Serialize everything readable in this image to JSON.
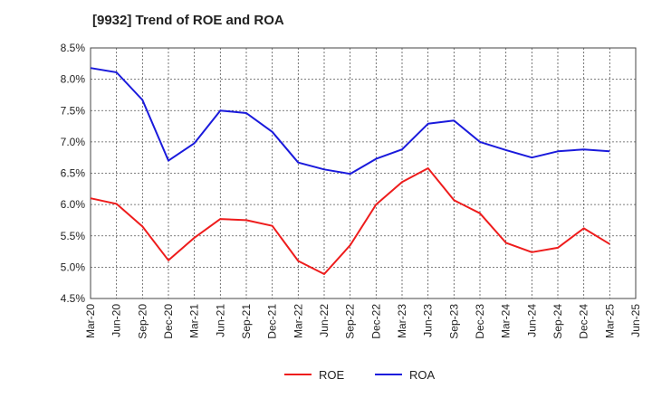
{
  "chart_data": {
    "type": "line",
    "title": "[9932]  Trend of ROE and ROA",
    "xlabel": "",
    "ylabel": "",
    "ylim": [
      4.5,
      8.5
    ],
    "y_ticks": [
      "4.5%",
      "5.0%",
      "5.5%",
      "6.0%",
      "6.5%",
      "7.0%",
      "7.5%",
      "8.0%",
      "8.5%"
    ],
    "y_tick_values": [
      4.5,
      5.0,
      5.5,
      6.0,
      6.5,
      7.0,
      7.5,
      8.0,
      8.5
    ],
    "x": [
      "Mar-20",
      "Jun-20",
      "Sep-20",
      "Dec-20",
      "Mar-21",
      "Jun-21",
      "Sep-21",
      "Dec-21",
      "Mar-22",
      "Jun-22",
      "Sep-22",
      "Dec-22",
      "Mar-23",
      "Jun-23",
      "Sep-23",
      "Dec-23",
      "Mar-24",
      "Jun-24",
      "Sep-24",
      "Dec-24",
      "Mar-25",
      "Jun-25"
    ],
    "grid": true,
    "legend_position": "bottom-center",
    "series": [
      {
        "name": "ROE",
        "color": "#ee1c1c",
        "values": [
          6.1,
          6.01,
          5.65,
          5.11,
          5.47,
          5.77,
          5.75,
          5.66,
          5.1,
          4.89,
          5.35,
          6.0,
          6.36,
          6.58,
          6.07,
          5.86,
          5.39,
          5.24,
          5.31,
          5.62,
          5.37,
          null
        ]
      },
      {
        "name": "ROA",
        "color": "#1a1adc",
        "values": [
          8.18,
          8.11,
          7.67,
          6.7,
          6.98,
          7.5,
          7.46,
          7.16,
          6.67,
          6.56,
          6.49,
          6.73,
          6.88,
          7.29,
          7.34,
          7.0,
          6.87,
          6.75,
          6.85,
          6.88,
          6.85,
          null
        ]
      }
    ]
  }
}
